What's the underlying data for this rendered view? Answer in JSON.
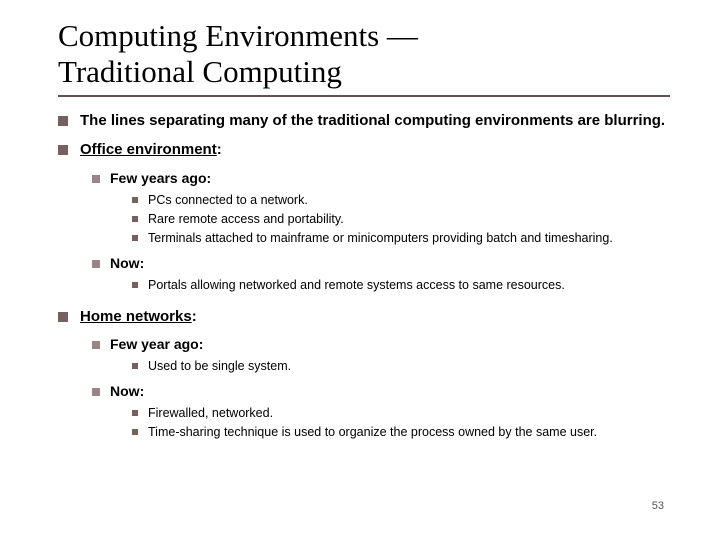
{
  "title_line_1": "Computing Environments —",
  "title_line_2": "Traditional Computing",
  "colors": {
    "underline": "#645050",
    "bullet_l1": "#766060",
    "bullet_l2": "#9a8484",
    "bullet_l3": "#766060",
    "text": "#000000",
    "background": "#ffffff"
  },
  "typography": {
    "title_font": "Times New Roman",
    "title_size_pt": 24,
    "body_font": "Arial",
    "l1_size_pt": 12,
    "l2_size_pt": 11,
    "l3_size_pt": 10
  },
  "top_bullets": [
    "The lines separating many of the traditional computing environments are blurring."
  ],
  "sections": [
    {
      "heading": "Office environment",
      "subsections": [
        {
          "label": "Few years ago",
          "items": [
            "PCs connected to a network.",
            "Rare remote access and portability.",
            "Terminals attached to mainframe or minicomputers providing batch and timesharing."
          ]
        },
        {
          "label": "Now",
          "items": [
            "Portals allowing networked and remote systems access to same resources."
          ]
        }
      ]
    },
    {
      "heading": "Home networks",
      "subsections": [
        {
          "label": "Few year ago",
          "items": [
            "Used to be single system."
          ]
        },
        {
          "label": "Now",
          "items": [
            "Firewalled, networked.",
            "Time-sharing technique is used to organize the process owned by the same user."
          ]
        }
      ]
    }
  ],
  "page_number": "53"
}
